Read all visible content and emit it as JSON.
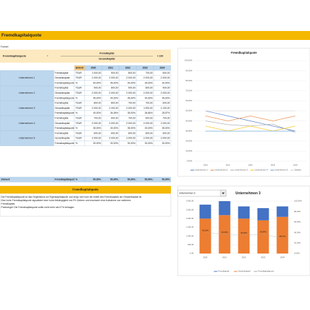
{
  "header": {
    "title": "Fremdkapitalquote"
  },
  "formula": {
    "label": "Formel:",
    "lhs": "Fremdkapitalquote",
    "eq": "=",
    "numerator": "Fremdkapital",
    "denominator": "Gesamtkapital",
    "factor": "× 100"
  },
  "table": {
    "header": [
      "Einheit",
      "2020",
      "2021",
      "2022",
      "2023",
      "2024"
    ],
    "groups": [
      {
        "name": "Unternehmen 1",
        "rows": [
          [
            "Fremdkapital",
            "TEUR",
            "1.000,00",
            "900,00",
            "800,00",
            "700,00",
            "600,00"
          ],
          [
            "Gesamtkapital",
            "TEUR",
            "2.000,00",
            "2.000,00",
            "2.000,00",
            "2.000,00",
            "2.000,00"
          ],
          [
            "Fremdkapitalquote",
            "%",
            "50,00%",
            "45,00%",
            "40,00%",
            "35,00%",
            "30,00%"
          ]
        ]
      },
      {
        "name": "Unternehmen 2",
        "rows": [
          [
            "Fremdkapital",
            "TEUR",
            "900,00",
            "800,00",
            "900,00",
            "800,00",
            "900,00"
          ],
          [
            "Gesamtkapital",
            "TEUR",
            "2.000,00",
            "2.000,00",
            "2.000,00",
            "2.000,00",
            "2.000,00"
          ],
          [
            "Fremdkapitalquote",
            "%",
            "45,00%",
            "40,00%",
            "45,00%",
            "40,00%",
            "45,00%"
          ]
        ]
      },
      {
        "name": "Unternehmen 3",
        "rows": [
          [
            "Fremdkapital",
            "TEUR",
            "800,00",
            "800,00",
            "700,00",
            "700,00",
            "600,00"
          ],
          [
            "Gesamtkapital",
            "TEUR",
            "2.000,00",
            "2.200,00",
            "2.000,00",
            "1.900,00",
            "2.100,00"
          ],
          [
            "Fremdkapitalquote",
            "%",
            "40,00%",
            "36,36%",
            "35,00%",
            "36,84%",
            "28,57%"
          ]
        ]
      },
      {
        "name": "Unternehmen 4",
        "rows": [
          [
            "Fremdkapital",
            "TEUR",
            "700,00",
            "600,00",
            "700,00",
            "600,00",
            "700,00"
          ],
          [
            "Gesamtkapital",
            "TEUR",
            "2.000,00",
            "2.000,00",
            "2.000,00",
            "2.000,00",
            "2.000,00"
          ],
          [
            "Fremdkapitalquote",
            "%",
            "35,00%",
            "30,00%",
            "35,00%",
            "30,00%",
            "35,00%"
          ]
        ]
      },
      {
        "name": "Unternehmen 5",
        "rows": [
          [
            "Fremdkapital",
            "TEUR",
            "600,00",
            "600,00",
            "600,00",
            "600,00",
            "600,00"
          ],
          [
            "Gesamtkapital",
            "TEUR",
            "2.000,00",
            "2.000,00",
            "2.000,00",
            "2.000,00",
            "2.000,00"
          ],
          [
            "Fremdkapitalquote",
            "%",
            "30,00%",
            "30,00%",
            "30,00%",
            "30,00%",
            "30,00%"
          ]
        ]
      }
    ],
    "summary": [
      "Zielwert",
      "Fremdkapitalquote",
      "%",
      "50,00%",
      "50,00%",
      "50,00%",
      "50,00%",
      "50,00%"
    ]
  },
  "text_box": {
    "title": "Fremdkapitalquote",
    "paragraphs": [
      "Die Fremdkapitalquote ist das Gegenstück zur Eigenkapitalquote und zeigt, wie hoch der Anteil des Fremdkapitals am Gesamtkapital ist.",
      "Eine hohe Fremdkapitalquote signalisiert eine hohe Abhängigkeit von FK-Gebern und erschwert eine Aufnahme von weiterem",
      "Fremdkapital.",
      "Praxisregel: Die Fremdkapitalquote sollte nicht mehr als 67% betragen."
    ]
  },
  "dropdown": {
    "value": "Unternehmen 3"
  },
  "chart_data": [
    {
      "type": "line",
      "title": "Fremdkapitalquote",
      "categories": [
        "2020",
        "2021",
        "2022",
        "2023",
        "2024"
      ],
      "series": [
        {
          "name": "Unternehmen 1",
          "color": "#4472c4",
          "values": [
            50,
            45,
            40,
            35,
            30
          ]
        },
        {
          "name": "Unternehmen 2",
          "color": "#ed7d31",
          "values": [
            45,
            40,
            45,
            40,
            45
          ]
        },
        {
          "name": "Unternehmen 3",
          "color": "#a5a5a5",
          "values": [
            40,
            36.36,
            35,
            36.84,
            28.57
          ]
        },
        {
          "name": "Unternehmen 4",
          "color": "#ffc000",
          "values": [
            35,
            30,
            35,
            30,
            35
          ]
        },
        {
          "name": "Unternehmen 5",
          "color": "#5b9bd5",
          "values": [
            30,
            30,
            30,
            30,
            30
          ]
        },
        {
          "name": "Zielwert",
          "color": "#c9c9c9",
          "values": [
            50,
            50,
            50,
            50,
            50
          ]
        }
      ],
      "ylim": [
        0,
        100
      ],
      "yticks": [
        {
          "value": 0,
          "label": "0,00%"
        },
        {
          "value": 10,
          "label": "10,00%"
        },
        {
          "value": 20,
          "label": "20,00%"
        },
        {
          "value": 30,
          "label": "30,00%"
        },
        {
          "value": 40,
          "label": "40,00%"
        },
        {
          "value": 50,
          "label": "50,00%"
        },
        {
          "value": 60,
          "label": "60,00%"
        },
        {
          "value": 70,
          "label": "70,00%"
        },
        {
          "value": 80,
          "label": "80,00%"
        },
        {
          "value": 90,
          "label": "90,00%"
        },
        {
          "value": 100,
          "label": "100,00%"
        }
      ],
      "grid": true,
      "legend": "bottom"
    },
    {
      "type": "combo",
      "title": "Unternehmen 3",
      "categories": [
        "2020",
        "2021",
        "2022",
        "2023",
        "2024"
      ],
      "series": [
        {
          "name": "Fremdkapital",
          "color": "#4472c4",
          "values": [
            800,
            800,
            700,
            700,
            600
          ]
        },
        {
          "name": "Gesamtkapital",
          "color": "#ed7d31",
          "values": [
            2000,
            2200,
            2000,
            1900,
            2100
          ]
        },
        {
          "name": "Fremdkapitalquote",
          "color": "#a5a5a5",
          "axis": "y2",
          "values": [
            40,
            36.36,
            35,
            36.84,
            28.57
          ],
          "value_labels": [
            "40,00%",
            "36,36%",
            "35,00%",
            "36,84%",
            "28,57%"
          ]
        }
      ],
      "stacked": true,
      "ylim": [
        0,
        3000
      ],
      "yticks": [
        {
          "value": 0,
          "label": "0,00"
        },
        {
          "value": 500,
          "label": "500,00"
        },
        {
          "value": 1000,
          "label": "1.000,00"
        },
        {
          "value": 1500,
          "label": "1.500,00"
        },
        {
          "value": 2000,
          "label": "2.000,00"
        },
        {
          "value": 2500,
          "label": "2.500,00"
        },
        {
          "value": 3000,
          "label": "3.000,00"
        }
      ],
      "y2lim": [
        0,
        100
      ],
      "y2ticks": [
        {
          "value": 0,
          "label": "0,00%"
        },
        {
          "value": 20,
          "label": "20,00%"
        },
        {
          "value": 40,
          "label": "40,00%"
        },
        {
          "value": 60,
          "label": "60,00%"
        },
        {
          "value": 80,
          "label": "80,00%"
        },
        {
          "value": 100,
          "label": "100,00%"
        }
      ],
      "grid": true,
      "legend": "bottom"
    }
  ]
}
